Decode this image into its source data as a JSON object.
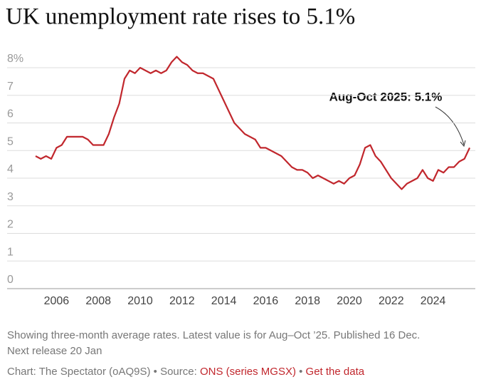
{
  "chart_data": {
    "type": "line",
    "title": "UK unemployment rate rises to 5.1%",
    "annotation": "Aug-Oct 2025: 5.1%",
    "color": "#c1272d",
    "grid": true,
    "x": [
      2005.0,
      2005.25,
      2005.5,
      2005.75,
      2006.0,
      2006.25,
      2006.5,
      2006.75,
      2007.0,
      2007.25,
      2007.5,
      2007.75,
      2008.0,
      2008.25,
      2008.5,
      2008.75,
      2009.0,
      2009.25,
      2009.5,
      2009.75,
      2010.0,
      2010.25,
      2010.5,
      2010.75,
      2011.0,
      2011.25,
      2011.5,
      2011.75,
      2012.0,
      2012.25,
      2012.5,
      2012.75,
      2013.0,
      2013.25,
      2013.5,
      2013.75,
      2014.0,
      2014.25,
      2014.5,
      2014.75,
      2015.0,
      2015.25,
      2015.5,
      2015.75,
      2016.0,
      2016.25,
      2016.5,
      2016.75,
      2017.0,
      2017.25,
      2017.5,
      2017.75,
      2018.0,
      2018.25,
      2018.5,
      2018.75,
      2019.0,
      2019.25,
      2019.5,
      2019.75,
      2020.0,
      2020.25,
      2020.5,
      2020.75,
      2021.0,
      2021.25,
      2021.5,
      2021.75,
      2022.0,
      2022.25,
      2022.5,
      2022.75,
      2023.0,
      2023.25,
      2023.5,
      2023.75,
      2024.0,
      2024.25,
      2024.5,
      2024.75,
      2025.0,
      2025.25,
      2025.5,
      2025.75
    ],
    "values": [
      4.8,
      4.7,
      4.8,
      4.7,
      5.1,
      5.2,
      5.5,
      5.5,
      5.5,
      5.5,
      5.4,
      5.2,
      5.2,
      5.2,
      5.6,
      6.2,
      6.7,
      7.6,
      7.9,
      7.8,
      8.0,
      7.9,
      7.8,
      7.9,
      7.8,
      7.9,
      8.2,
      8.4,
      8.2,
      8.1,
      7.9,
      7.8,
      7.8,
      7.7,
      7.6,
      7.2,
      6.8,
      6.4,
      6.0,
      5.8,
      5.6,
      5.5,
      5.4,
      5.1,
      5.1,
      5.0,
      4.9,
      4.8,
      4.6,
      4.4,
      4.3,
      4.3,
      4.2,
      4.0,
      4.1,
      4.0,
      3.9,
      3.8,
      3.9,
      3.8,
      4.0,
      4.1,
      4.5,
      5.1,
      5.2,
      4.8,
      4.6,
      4.3,
      4.0,
      3.8,
      3.6,
      3.8,
      3.9,
      4.0,
      4.3,
      4.0,
      3.9,
      4.3,
      4.2,
      4.4,
      4.4,
      4.6,
      4.7,
      5.1
    ],
    "xlim": [
      2004,
      2026
    ],
    "xticks": [
      2006,
      2008,
      2010,
      2012,
      2014,
      2016,
      2018,
      2020,
      2022,
      2024
    ],
    "ylim": [
      0,
      8.6
    ],
    "yticks": [
      0,
      1,
      2,
      3,
      4,
      5,
      6,
      7,
      {
        "value": 8,
        "label": "8%"
      }
    ],
    "notes": [
      "Showing three-month average rates. Latest value is for Aug–Oct ’25. Published 16 Dec.",
      "Next release 20 Jan"
    ],
    "credit": "Chart: The Spectator (oAQ9S) • Source: ",
    "source_link": "ONS (series MGSX)",
    "separator": " • ",
    "data_link": "Get the data"
  }
}
